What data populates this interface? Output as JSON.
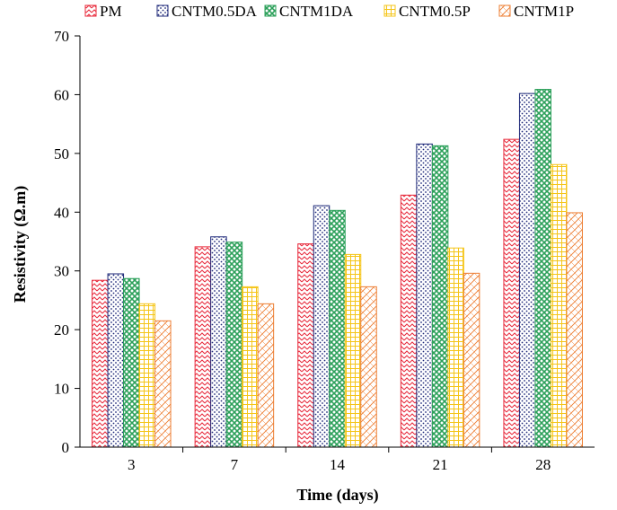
{
  "chart_data": {
    "type": "bar",
    "title": "",
    "xlabel": "Time (days)",
    "ylabel": "Resistivity (Ω.m)",
    "categories": [
      "3",
      "7",
      "14",
      "21",
      "28"
    ],
    "ylim": [
      0,
      70
    ],
    "yticks": [
      0,
      10,
      20,
      30,
      40,
      50,
      60,
      70
    ],
    "grid": false,
    "legend_position": "top",
    "series": [
      {
        "name": "PM",
        "values": [
          28.4,
          34.1,
          34.6,
          42.9,
          52.4
        ],
        "color": "#e8283a",
        "pattern": "zigzag"
      },
      {
        "name": "CNTM0.5DA",
        "values": [
          29.5,
          35.8,
          41.1,
          51.6,
          60.2
        ],
        "color": "#1f2a7a",
        "pattern": "dots"
      },
      {
        "name": "CNTM1DA",
        "values": [
          28.7,
          34.9,
          40.3,
          51.3,
          60.9
        ],
        "color": "#2ca05a",
        "pattern": "diamond"
      },
      {
        "name": "CNTM0.5P",
        "values": [
          24.4,
          27.3,
          32.8,
          33.9,
          48.1
        ],
        "color": "#f5c518",
        "pattern": "grid"
      },
      {
        "name": "CNTM1P",
        "values": [
          21.5,
          24.4,
          27.3,
          29.6,
          39.9
        ],
        "color": "#ed7d31",
        "pattern": "crosshatch"
      }
    ]
  }
}
